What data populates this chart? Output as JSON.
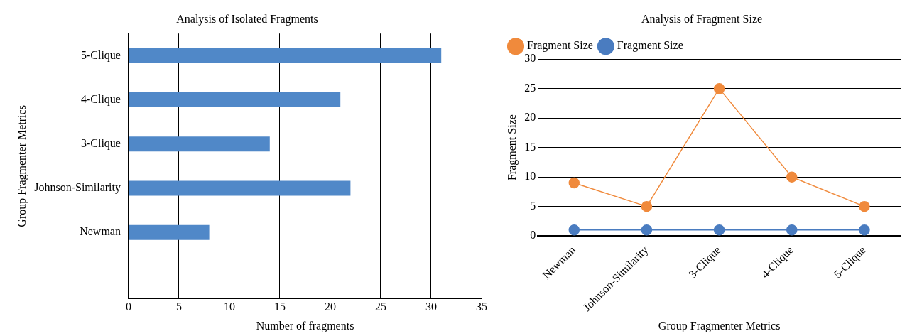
{
  "chart_data": [
    {
      "type": "bar",
      "title": "Analysis of Isolated Fragments",
      "xlabel": "Number of fragments",
      "ylabel": "Group Fragmenter Metrics",
      "orientation": "horizontal",
      "categories": [
        "5-Clique",
        "4-Clique",
        "3-Clique",
        "Johnson-Similarity",
        "Newman",
        null
      ],
      "values": [
        31,
        21,
        14,
        22,
        8,
        null
      ],
      "color": "#5088c8",
      "xlim": [
        0,
        35
      ],
      "xticks": [
        0,
        5,
        10,
        15,
        20,
        25,
        30,
        35
      ],
      "grid": "x"
    },
    {
      "type": "line",
      "title": "Analysis of Fragment Size",
      "xlabel": "Group Fragmenter Metrics",
      "ylabel": "Fragment Size",
      "categories": [
        "Newman",
        "Johnson-Similarity",
        "3-Clique",
        "4-Clique",
        "5-Clique"
      ],
      "series": [
        {
          "name": "Fragment Size",
          "color": "#f08a3c",
          "values": [
            9,
            5,
            25,
            10,
            5
          ]
        },
        {
          "name": "Fragment Size",
          "color": "#4a7cc0",
          "values": [
            1,
            1,
            1,
            1,
            1
          ]
        }
      ],
      "ylim": [
        0,
        30
      ],
      "yticks": [
        0,
        5,
        10,
        15,
        20,
        25,
        30
      ],
      "grid": "y",
      "legend": "top left",
      "marker": "circle",
      "line_style": "solid"
    }
  ]
}
